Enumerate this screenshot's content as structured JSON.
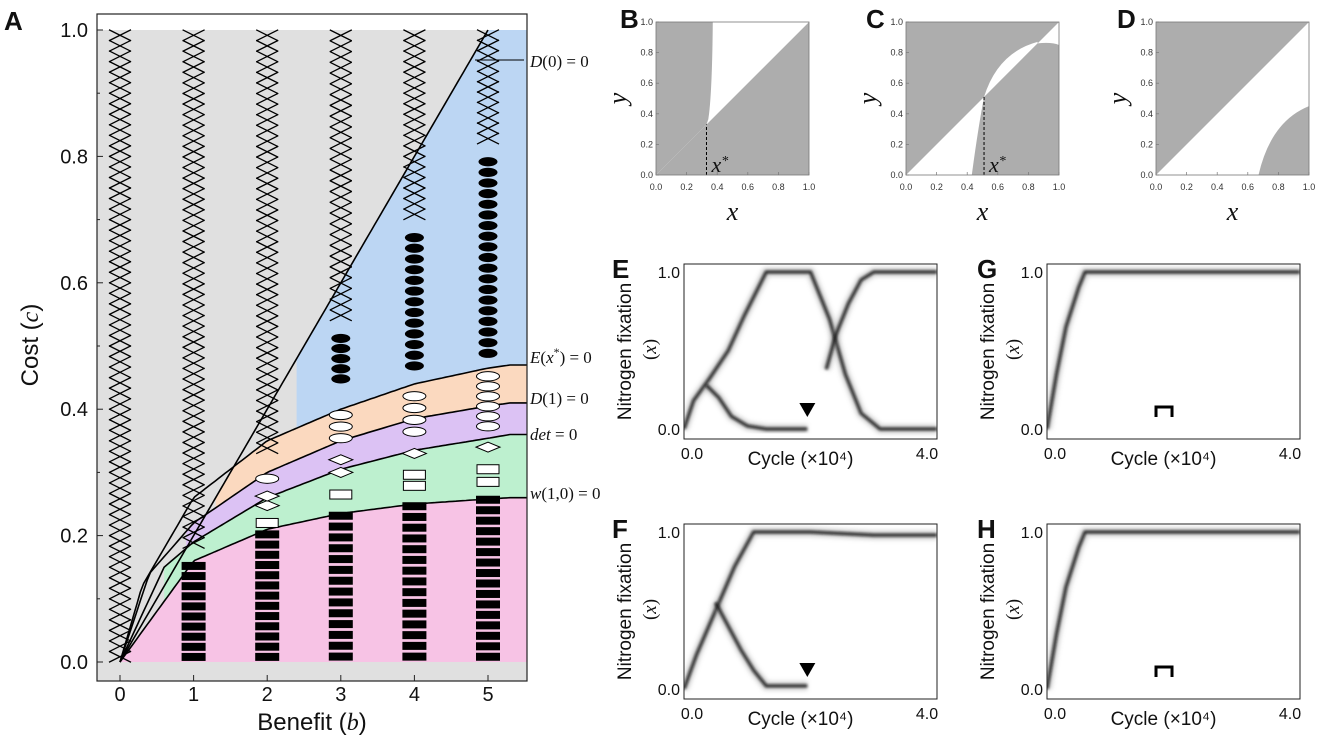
{
  "chart_data": [
    {
      "panel": "A",
      "type": "scatter",
      "xlabel": "Benefit (b)",
      "ylabel": "Cost (c)",
      "xticks": [
        "0",
        "1",
        "2",
        "3",
        "4",
        "5"
      ],
      "yticks": [
        "0.0",
        "0.2",
        "0.4",
        "0.6",
        "0.8",
        "1.0"
      ],
      "xlim": [
        -0.3,
        5.3
      ],
      "ylim": [
        0,
        1
      ],
      "boundary_labels": [
        "D(0) = 0",
        "E(x*) = 0",
        "D(1) = 0",
        "det = 0",
        "w(1,0) = 0"
      ],
      "curves": {
        "D0": "c = b/5 (straight line)",
        "w10": [
          [
            0,
            0
          ],
          [
            1,
            0.16
          ],
          [
            2,
            0.21
          ],
          [
            3,
            0.235
          ],
          [
            4,
            0.25
          ],
          [
            5,
            0.258
          ],
          [
            5.3,
            0.26
          ]
        ],
        "det": [
          [
            0.6,
            0.15
          ],
          [
            1,
            0.19
          ],
          [
            2,
            0.26
          ],
          [
            3,
            0.305
          ],
          [
            4,
            0.335
          ],
          [
            5,
            0.354
          ],
          [
            5.3,
            0.36
          ]
        ],
        "D1": [
          [
            0.4,
            0.14
          ],
          [
            1,
            0.22
          ],
          [
            2,
            0.3
          ],
          [
            3,
            0.35
          ],
          [
            4,
            0.385
          ],
          [
            5,
            0.405
          ],
          [
            5.3,
            0.41
          ]
        ],
        "Ex": [
          [
            0.3,
            0.12
          ],
          [
            1,
            0.26
          ],
          [
            2,
            0.35
          ],
          [
            3,
            0.4
          ],
          [
            4,
            0.44
          ],
          [
            5,
            0.465
          ],
          [
            5.3,
            0.47
          ]
        ]
      },
      "regions": [
        {
          "name": "gray",
          "color": "#e0e0e0"
        },
        {
          "name": "blue",
          "color": "#bcd6f3"
        },
        {
          "name": "orange",
          "color": "#fbd9bf"
        },
        {
          "name": "purple",
          "color": "#dcc2f4"
        },
        {
          "name": "green",
          "color": "#bdf0cf"
        },
        {
          "name": "pink",
          "color": "#f7c3e5"
        }
      ],
      "marker_columns": [
        {
          "b": 0,
          "markers": [
            {
              "c_from": 0.0,
              "c_to": 1.0,
              "marker": "cross"
            }
          ]
        },
        {
          "b": 1,
          "markers": [
            {
              "c_from": 0.0,
              "c_to": 0.16,
              "marker": "filled-rect"
            },
            {
              "c_from": 0.18,
              "c_to": 1.0,
              "marker": "cross"
            }
          ]
        },
        {
          "b": 2,
          "markers": [
            {
              "c_from": 0.0,
              "c_to": 0.21,
              "marker": "filled-rect"
            },
            {
              "c_from": 0.215,
              "c_to": 0.225,
              "marker": "open-rect"
            },
            {
              "c_from": 0.24,
              "c_to": 0.27,
              "marker": "open-diamond"
            },
            {
              "c_from": 0.28,
              "c_to": 0.3,
              "marker": "open-ellipse"
            },
            {
              "c_from": 0.33,
              "c_to": 1.0,
              "marker": "cross"
            }
          ]
        },
        {
          "b": 3,
          "markers": [
            {
              "c_from": 0.0,
              "c_to": 0.24,
              "marker": "filled-rect"
            },
            {
              "c_from": 0.255,
              "c_to": 0.275,
              "marker": "open-rect"
            },
            {
              "c_from": 0.29,
              "c_to": 0.33,
              "marker": "open-diamond"
            },
            {
              "c_from": 0.345,
              "c_to": 0.4,
              "marker": "open-ellipse"
            },
            {
              "c_from": 0.44,
              "c_to": 0.52,
              "marker": "filled-ellipse"
            },
            {
              "c_from": 0.54,
              "c_to": 1.0,
              "marker": "cross"
            }
          ]
        },
        {
          "b": 4,
          "markers": [
            {
              "c_from": 0.0,
              "c_to": 0.255,
              "marker": "filled-rect"
            },
            {
              "c_from": 0.27,
              "c_to": 0.305,
              "marker": "open-rect"
            },
            {
              "c_from": 0.32,
              "c_to": 0.34,
              "marker": "open-diamond"
            },
            {
              "c_from": 0.355,
              "c_to": 0.43,
              "marker": "open-ellipse"
            },
            {
              "c_from": 0.46,
              "c_to": 0.68,
              "marker": "filled-ellipse"
            },
            {
              "c_from": 0.7,
              "c_to": 1.0,
              "marker": "cross"
            }
          ]
        },
        {
          "b": 5,
          "markers": [
            {
              "c_from": 0.0,
              "c_to": 0.265,
              "marker": "filled-rect"
            },
            {
              "c_from": 0.275,
              "c_to": 0.315,
              "marker": "open-rect"
            },
            {
              "c_from": 0.33,
              "c_to": 0.35,
              "marker": "open-diamond"
            },
            {
              "c_from": 0.365,
              "c_to": 0.46,
              "marker": "open-ellipse"
            },
            {
              "c_from": 0.48,
              "c_to": 0.8,
              "marker": "filled-ellipse"
            },
            {
              "c_from": 0.82,
              "c_to": 1.0,
              "marker": "cross"
            }
          ]
        }
      ]
    },
    {
      "panel": "B",
      "type": "area",
      "xlabel": "x",
      "ylabel": "y",
      "ticks": [
        "0.0",
        "0.2",
        "0.4",
        "0.6",
        "0.8",
        "1.0"
      ],
      "xlim": [
        0,
        1
      ],
      "ylim": [
        0,
        1
      ],
      "annotation": "x*",
      "xstar": 0.33,
      "fill_color": "#adadad"
    },
    {
      "panel": "C",
      "type": "area",
      "xlabel": "x",
      "ylabel": "y",
      "ticks": [
        "0.0",
        "0.2",
        "0.4",
        "0.6",
        "0.8",
        "1.0"
      ],
      "xlim": [
        0,
        1
      ],
      "ylim": [
        0,
        1
      ],
      "annotation": "x*",
      "xstar": 0.51,
      "fill_color": "#adadad"
    },
    {
      "panel": "D",
      "type": "area",
      "xlabel": "x",
      "ylabel": "y",
      "ticks": [
        "0.0",
        "0.2",
        "0.4",
        "0.6",
        "0.8",
        "1.0"
      ],
      "xlim": [
        0,
        1
      ],
      "ylim": [
        0,
        1
      ],
      "fill_color": "#adadad"
    },
    {
      "panel": "E",
      "type": "line",
      "xlabel": "Cycle (×10⁴)",
      "ylabel": "Nitrogen fixation (x)",
      "xticks": [
        "0.0",
        "4.0"
      ],
      "yticks": [
        "0.0",
        "1.0"
      ],
      "xlim": [
        0,
        4
      ],
      "ylim": [
        0,
        1
      ],
      "marker": "triangle",
      "marker_x": 1.95,
      "series": [
        {
          "x": [
            0,
            0.15,
            0.4,
            0.7,
            0.95,
            1.3,
            1.6,
            2.0,
            2.3,
            2.55,
            2.8,
            3.1,
            3.5,
            4.0
          ],
          "y": [
            0.0,
            0.18,
            0.32,
            0.5,
            0.72,
            1.0,
            1.0,
            1.0,
            0.7,
            0.35,
            0.1,
            0.0,
            0.0,
            0.0
          ]
        },
        {
          "x": [
            0.35,
            0.55,
            0.75,
            1.0,
            1.3,
            1.95
          ],
          "y": [
            0.28,
            0.2,
            0.08,
            0.02,
            0.0,
            0.0
          ]
        },
        {
          "x": [
            2.25,
            2.4,
            2.6,
            2.8,
            3.0,
            3.3,
            4.0
          ],
          "y": [
            0.38,
            0.6,
            0.8,
            0.95,
            1.0,
            1.0,
            1.0
          ]
        }
      ]
    },
    {
      "panel": "F",
      "type": "line",
      "xlabel": "Cycle (×10⁴)",
      "ylabel": "Nitrogen fixation (x)",
      "xticks": [
        "0.0",
        "4.0"
      ],
      "yticks": [
        "0.0",
        "1.0"
      ],
      "xlim": [
        0,
        4
      ],
      "ylim": [
        0,
        1
      ],
      "marker": "triangle",
      "marker_x": 1.95,
      "series": [
        {
          "x": [
            0,
            0.2,
            0.5,
            0.8,
            1.1,
            1.5,
            2.0,
            3.0,
            4.0
          ],
          "y": [
            0.0,
            0.22,
            0.5,
            0.78,
            1.0,
            1.0,
            1.0,
            0.98,
            0.98
          ]
        },
        {
          "x": [
            0.5,
            0.7,
            0.9,
            1.1,
            1.3,
            1.95
          ],
          "y": [
            0.55,
            0.4,
            0.25,
            0.12,
            0.02,
            0.02
          ]
        }
      ]
    },
    {
      "panel": "G",
      "type": "line",
      "xlabel": "Cycle (×10⁴)",
      "ylabel": "Nitrogen fixation (x)",
      "xticks": [
        "0.0",
        "4.0"
      ],
      "yticks": [
        "0.0",
        "1.0"
      ],
      "xlim": [
        0,
        4
      ],
      "ylim": [
        0,
        1
      ],
      "marker": "bracket",
      "marker_x": 1.85,
      "series": [
        {
          "x": [
            0,
            0.15,
            0.3,
            0.5,
            0.6,
            1.0,
            2.0,
            3.0,
            4.0
          ],
          "y": [
            0.0,
            0.35,
            0.65,
            0.9,
            1.0,
            1.0,
            1.0,
            1.0,
            1.0
          ]
        }
      ]
    },
    {
      "panel": "H",
      "type": "line",
      "xlabel": "Cycle (×10⁴)",
      "ylabel": "Nitrogen fixation (x)",
      "xticks": [
        "0.0",
        "4.0"
      ],
      "yticks": [
        "0.0",
        "1.0"
      ],
      "xlim": [
        0,
        4
      ],
      "ylim": [
        0,
        1
      ],
      "marker": "bracket",
      "marker_x": 1.85,
      "series": [
        {
          "x": [
            0,
            0.15,
            0.3,
            0.5,
            0.6,
            1.0,
            2.0,
            3.0,
            4.0
          ],
          "y": [
            0.0,
            0.35,
            0.65,
            0.9,
            1.0,
            1.0,
            1.0,
            1.0,
            1.0
          ]
        }
      ]
    }
  ]
}
